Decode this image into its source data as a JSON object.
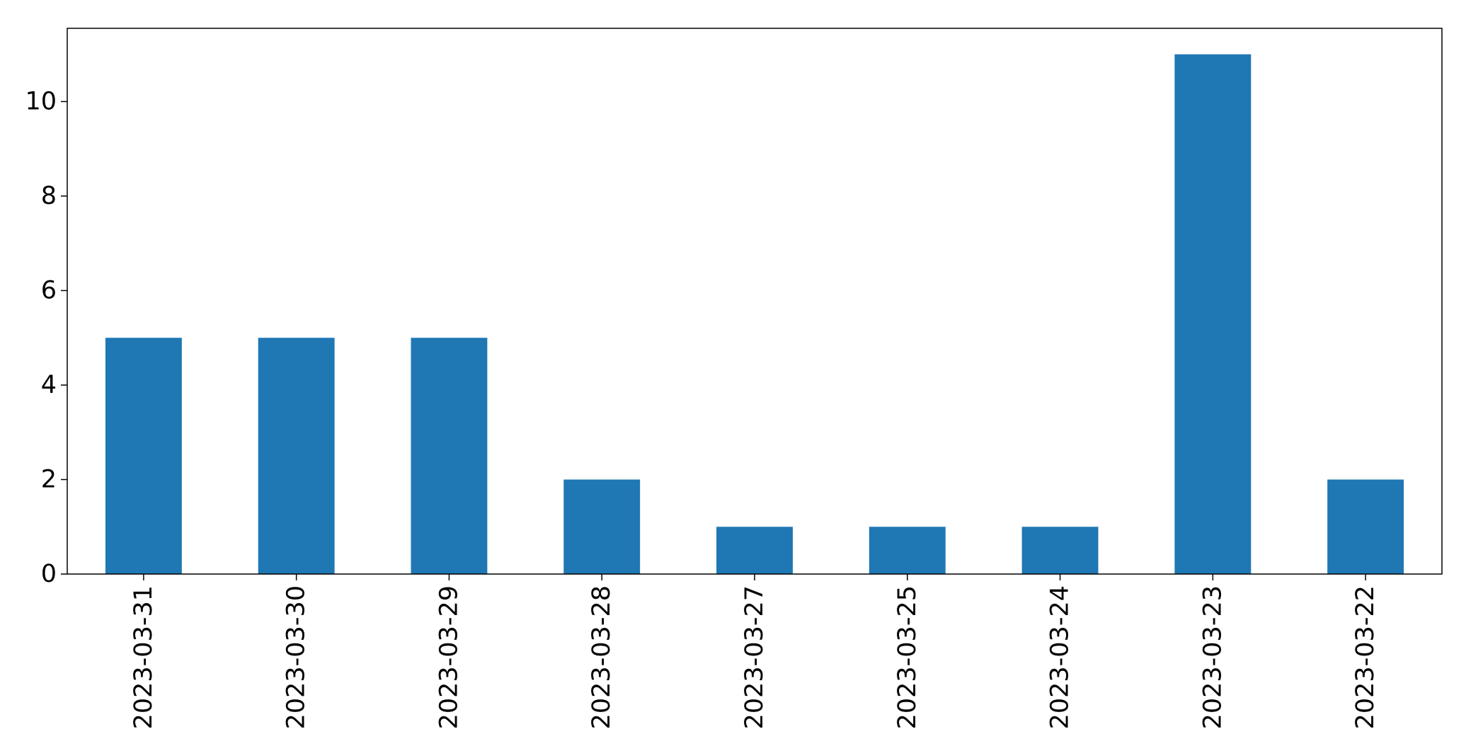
{
  "chart_data": {
    "type": "bar",
    "title": "",
    "xlabel": "",
    "ylabel": "",
    "categories": [
      "2023-03-31",
      "2023-03-30",
      "2023-03-29",
      "2023-03-28",
      "2023-03-27",
      "2023-03-25",
      "2023-03-24",
      "2023-03-23",
      "2023-03-22"
    ],
    "values": [
      5,
      5,
      5,
      2,
      1,
      1,
      1,
      11,
      2
    ],
    "ylim": [
      0,
      11.55
    ],
    "yticks": [
      0,
      2,
      4,
      6,
      8,
      10
    ],
    "grid": false,
    "legend": "none",
    "bar_color": "#1f77b4"
  }
}
